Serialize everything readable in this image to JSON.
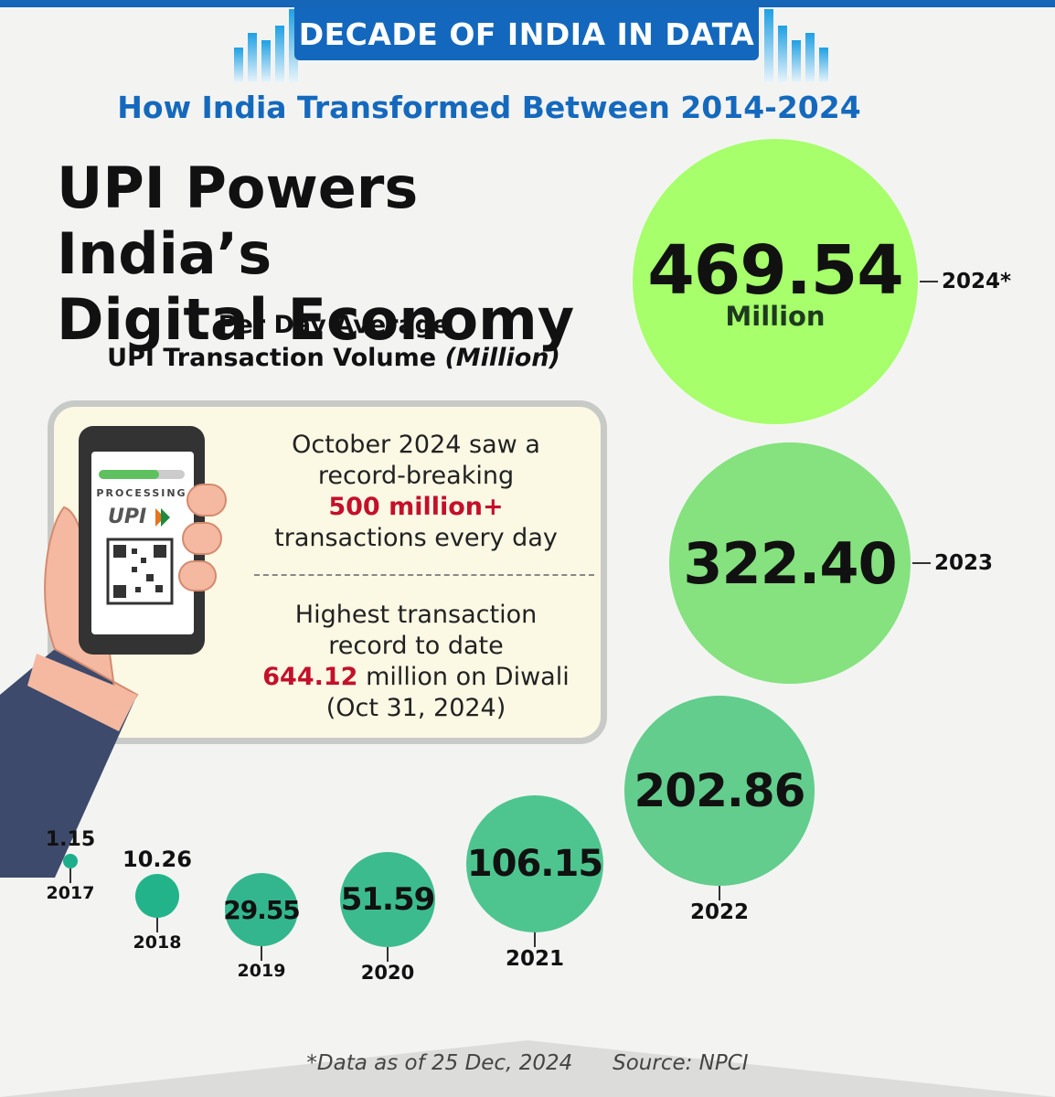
{
  "header": {
    "banner": "DECADE OF INDIA IN DATA",
    "subtitle": "How India Transformed Between 2014-2024"
  },
  "card": {
    "fact1_line1": "October 2024 saw a",
    "fact1_line2": "record-breaking",
    "fact1_highlight": "500 million+",
    "fact1_line3": "transactions every day",
    "fact2_line1": "Highest transaction",
    "fact2_line2": "record to date",
    "fact2_highlight": "644.12",
    "fact2_line3_rest": "million on Diwali",
    "fact2_line4": "(Oct 31, 2024)"
  },
  "footer": {
    "note": "*Data as of 25 Dec, 2024",
    "source": "Source: NPCI"
  },
  "chart_data": {
    "type": "bubble",
    "title_line1": "UPI Powers India’s",
    "title_line2": "Digital Economy",
    "subtitle_line1": "Per Day Average",
    "subtitle_line2": "UPI Transaction Volume",
    "unit_label": "(Million)",
    "largest_unit_label": "Million",
    "categories": [
      "2017",
      "2018",
      "2019",
      "2020",
      "2021",
      "2022",
      "2023",
      "2024*"
    ],
    "values": [
      1.15,
      10.26,
      29.55,
      51.59,
      106.15,
      202.86,
      322.4,
      469.54
    ],
    "value_labels": [
      "1.15",
      "10.26",
      "29.55",
      "51.59",
      "106.15",
      "202.86",
      "322.40",
      "469.54"
    ],
    "colors": [
      "#1fae8c",
      "#23b38a",
      "#33b68d",
      "#3cbc8e",
      "#4ec58f",
      "#62cd8c",
      "#85e27f",
      "#a6ff6b"
    ]
  }
}
